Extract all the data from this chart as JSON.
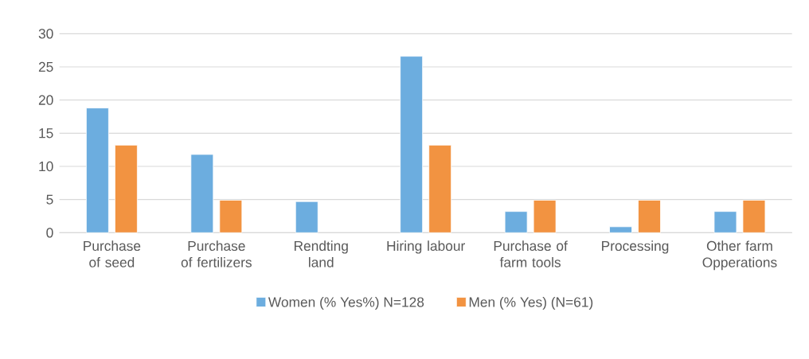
{
  "chart_data": {
    "type": "bar",
    "categories": [
      "Purchase of seed",
      "Purchase of fertilizers",
      "Rendting land",
      "Hiring labour",
      "Purchase of farm tools",
      "Processing",
      "Other farm Opperations"
    ],
    "series": [
      {
        "name": "Women (% Yes%) N=128",
        "color": "#6caddf",
        "values": [
          18.8,
          11.8,
          4.7,
          26.6,
          3.2,
          0.9,
          3.2
        ]
      },
      {
        "name": "Men (% Yes) (N=61)",
        "color": "#f29341",
        "values": [
          13.2,
          4.9,
          null,
          13.2,
          4.9,
          4.9,
          4.9
        ]
      }
    ],
    "ylim": [
      0,
      30
    ],
    "yticks": [
      0,
      5,
      10,
      15,
      20,
      25,
      30
    ],
    "grid": "y",
    "legend": "bottom"
  }
}
